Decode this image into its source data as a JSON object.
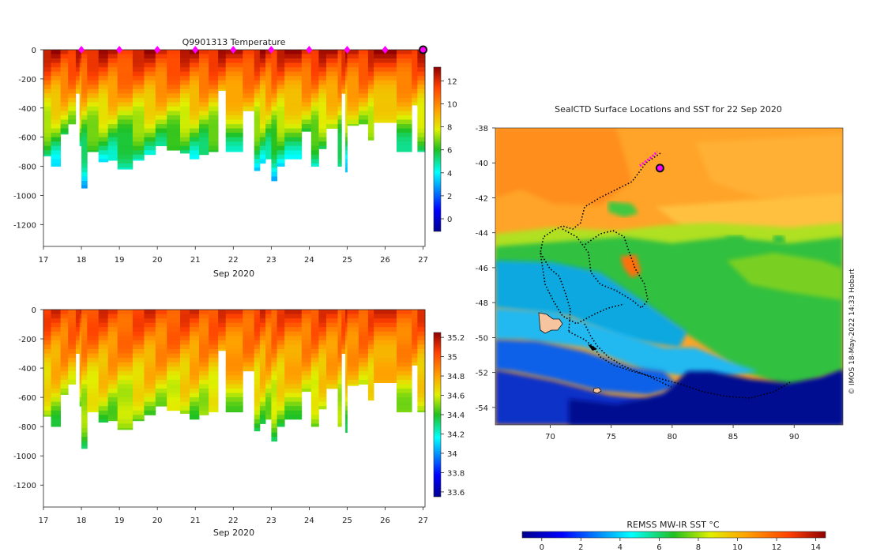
{
  "chart_data": [
    {
      "id": "temperature-section",
      "type": "heatmap",
      "title": "Q9901313  Temperature",
      "xlabel": "Sep 2020",
      "ylabel": "",
      "x_ticks": [
        17,
        18,
        19,
        20,
        21,
        22,
        23,
        24,
        25,
        26,
        27
      ],
      "y_ticks": [
        0,
        -200,
        -400,
        -600,
        -800,
        -1000,
        -1200
      ],
      "xlim": [
        17,
        27.05
      ],
      "ylim": [
        -1350,
        0
      ],
      "colorbar": {
        "ticks": [
          0,
          2,
          4,
          6,
          8,
          10,
          12
        ],
        "range": [
          -1.1,
          13.2
        ]
      },
      "value_top": 12.3,
      "value_bottom": 3.0,
      "surface_markers_day": [
        18,
        19,
        20,
        21,
        22,
        23,
        24,
        25,
        26
      ],
      "latest_profile_day": 27
    },
    {
      "id": "salinity-section",
      "type": "heatmap",
      "title": "",
      "xlabel": "Sep 2020",
      "ylabel": "",
      "x_ticks": [
        17,
        18,
        19,
        20,
        21,
        22,
        23,
        24,
        25,
        26,
        27
      ],
      "y_ticks": [
        0,
        -200,
        -400,
        -600,
        -800,
        -1000,
        -1200
      ],
      "xlim": [
        17,
        27.05
      ],
      "ylim": [
        -1350,
        0
      ],
      "colorbar": {
        "ticks": [
          33.6,
          33.8,
          34,
          34.2,
          34.4,
          34.6,
          34.8,
          35,
          35.2
        ],
        "range": [
          33.55,
          35.25
        ]
      },
      "value_top": 35.05,
      "value_bottom": 34.35
    },
    {
      "id": "sst-map",
      "type": "heatmap",
      "title": "SealCTD Surface Locations and SST for 22 Sep 2020",
      "xlabel": "",
      "ylabel": "",
      "x_ticks": [
        70,
        75,
        80,
        85,
        90
      ],
      "y_ticks": [
        -38,
        -40,
        -42,
        -44,
        -46,
        -48,
        -50,
        -52,
        -54
      ],
      "xlim": [
        65.5,
        94
      ],
      "ylim": [
        -55,
        -38
      ],
      "colorbar_label": "REMSS MW-IR SST °C",
      "colorbar_ticks": [
        0,
        2,
        4,
        6,
        8,
        10,
        12,
        14
      ],
      "colorbar_range": [
        -1,
        14.5
      ],
      "credit": "© IMOS 18-May-2022 14:33 Hobart",
      "latest_position": {
        "lon": 79.0,
        "lat": -40.3
      }
    }
  ],
  "profiles": [
    {
      "x": 17.0,
      "d": 730
    },
    {
      "x": 17.2,
      "d": 800
    },
    {
      "x": 17.45,
      "d": 580
    },
    {
      "x": 17.65,
      "d": 510
    },
    {
      "x": 17.85,
      "d": 300
    },
    {
      "x": 17.95,
      "d": 660
    },
    {
      "x": 18.0,
      "d": 950
    },
    {
      "x": 18.15,
      "d": 700
    },
    {
      "x": 18.45,
      "d": 770
    },
    {
      "x": 18.7,
      "d": 760
    },
    {
      "x": 18.95,
      "d": 820
    },
    {
      "x": 19.35,
      "d": 760
    },
    {
      "x": 19.65,
      "d": 720
    },
    {
      "x": 19.95,
      "d": 660
    },
    {
      "x": 20.25,
      "d": 690
    },
    {
      "x": 20.6,
      "d": 710
    },
    {
      "x": 20.85,
      "d": 750
    },
    {
      "x": 21.1,
      "d": 720
    },
    {
      "x": 21.35,
      "d": 700
    },
    {
      "x": 21.6,
      "d": 280
    },
    {
      "x": 21.8,
      "d": 700
    },
    {
      "x": 22.25,
      "d": 420
    },
    {
      "x": 22.55,
      "d": 830
    },
    {
      "x": 22.7,
      "d": 780
    },
    {
      "x": 22.85,
      "d": 750
    },
    {
      "x": 23.0,
      "d": 900
    },
    {
      "x": 23.15,
      "d": 800
    },
    {
      "x": 23.35,
      "d": 750
    },
    {
      "x": 23.8,
      "d": 560
    },
    {
      "x": 24.05,
      "d": 800
    },
    {
      "x": 24.25,
      "d": 680
    },
    {
      "x": 24.45,
      "d": 540
    },
    {
      "x": 24.75,
      "d": 800
    },
    {
      "x": 24.85,
      "d": 300
    },
    {
      "x": 24.95,
      "d": 840
    },
    {
      "x": 25.0,
      "d": 520
    },
    {
      "x": 25.3,
      "d": 510
    },
    {
      "x": 25.55,
      "d": 620
    },
    {
      "x": 25.7,
      "d": 500
    },
    {
      "x": 26.3,
      "d": 700
    },
    {
      "x": 26.7,
      "d": 380
    },
    {
      "x": 26.85,
      "d": 700
    },
    {
      "x": 27.05,
      "d": 700
    }
  ]
}
